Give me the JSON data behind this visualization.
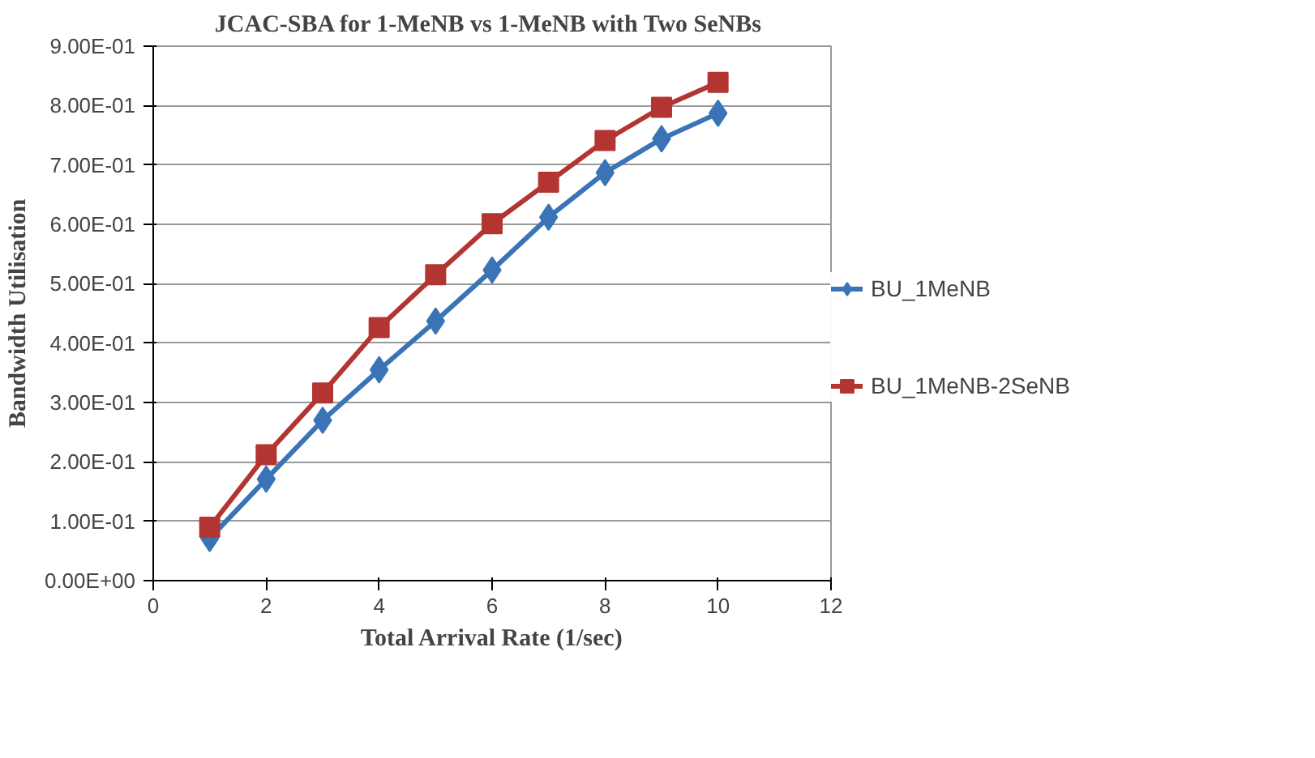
{
  "chart_data": {
    "type": "line",
    "title": "JCAC-SBA for 1-MeNB vs  1-MeNB with Two SeNBs",
    "xlabel": "Total Arrival Rate (1/sec)",
    "ylabel": "Bandwidth Utilisation",
    "x": [
      1,
      2,
      3,
      4,
      5,
      6,
      7,
      8,
      9,
      10
    ],
    "series": [
      {
        "name": "BU_1MeNB",
        "color": "#3a74b6",
        "marker": "diamond",
        "values": [
          0.071,
          0.171,
          0.27,
          0.355,
          0.437,
          0.523,
          0.612,
          0.687,
          0.744,
          0.787
        ]
      },
      {
        "name": "BU_1MeNB-2SeNB",
        "color": "#b33532",
        "marker": "square",
        "values": [
          0.09,
          0.212,
          0.316,
          0.426,
          0.515,
          0.601,
          0.671,
          0.741,
          0.797,
          0.839
        ]
      }
    ],
    "xlim": [
      0,
      12
    ],
    "xticks": [
      0,
      2,
      4,
      6,
      8,
      10,
      12
    ],
    "ylim": [
      0,
      0.9
    ],
    "yticks": [
      {
        "value": 0,
        "label": "0.00E+00"
      },
      {
        "value": 0.1,
        "label": "1.00E-01"
      },
      {
        "value": 0.2,
        "label": "2.00E-01"
      },
      {
        "value": 0.3,
        "label": "3.00E-01"
      },
      {
        "value": 0.4,
        "label": "4.00E-01"
      },
      {
        "value": 0.5,
        "label": "5.00E-01"
      },
      {
        "value": 0.6,
        "label": "6.00E-01"
      },
      {
        "value": 0.7,
        "label": "7.00E-01"
      },
      {
        "value": 0.8,
        "label": "8.00E-01"
      },
      {
        "value": 0.9,
        "label": "9.00E-01"
      }
    ],
    "grid": "y",
    "legend": "right",
    "line_style": "solid"
  }
}
